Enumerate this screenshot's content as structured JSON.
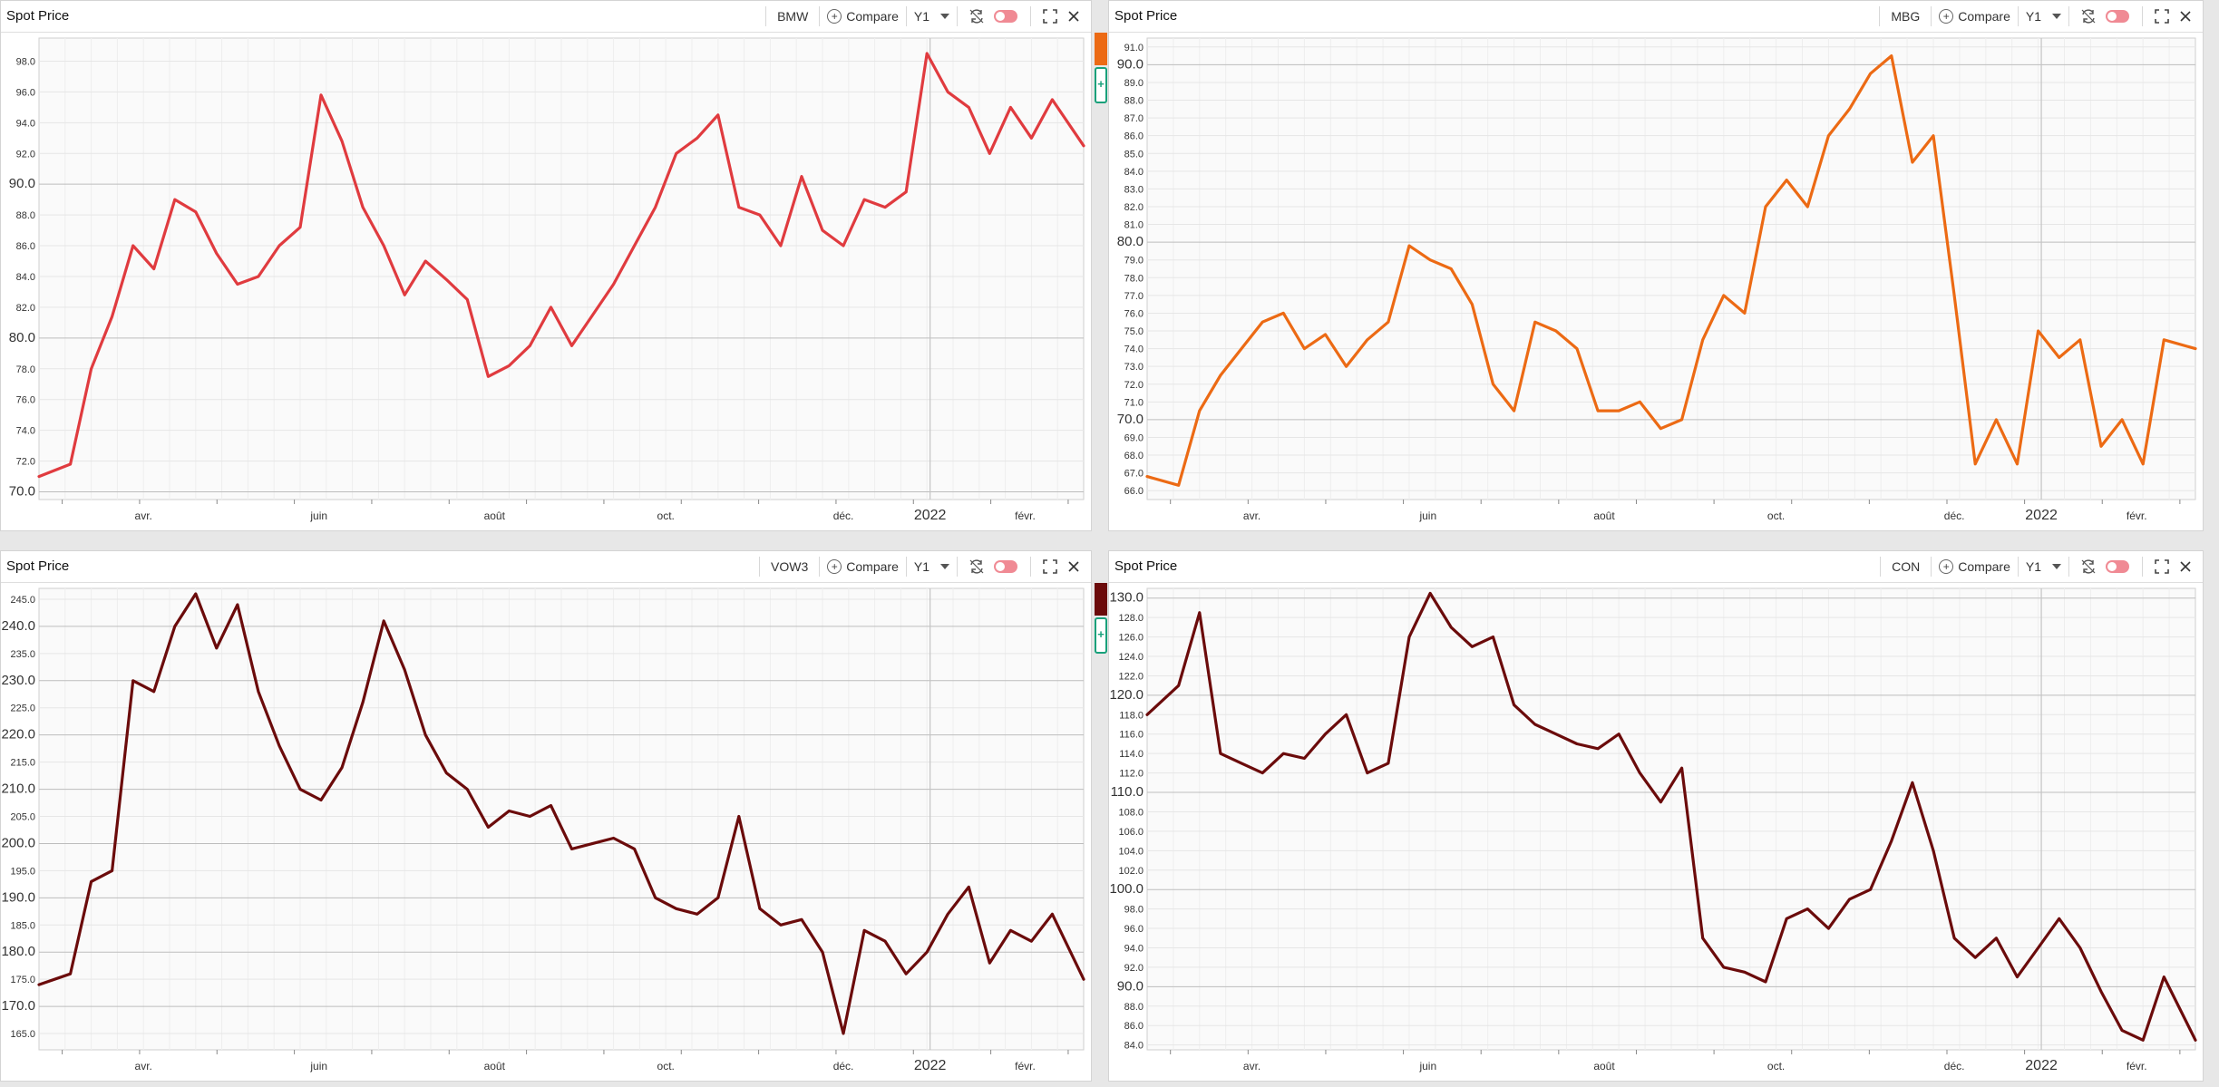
{
  "colors": {
    "bmw": "#e03b3f",
    "mbg": "#ec6a14",
    "vow3": "#6b0b0b",
    "con": "#6b0b0b"
  },
  "panels": [
    {
      "id": "bmw",
      "title": "Spot Price",
      "ticker": "BMW",
      "compare_label": "Compare",
      "period_label": "Y1",
      "icons": [
        "sync-icon",
        "toggle-switch",
        "expand-icon",
        "close-icon"
      ]
    },
    {
      "id": "mbg",
      "title": "Spot Price",
      "ticker": "MBG",
      "compare_label": "Compare",
      "period_label": "Y1",
      "icons": [
        "sync-icon",
        "toggle-switch",
        "expand-icon",
        "close-icon"
      ]
    },
    {
      "id": "vow3",
      "title": "Spot Price",
      "ticker": "VOW3",
      "compare_label": "Compare",
      "period_label": "Y1",
      "icons": [
        "sync-icon",
        "toggle-switch",
        "expand-icon",
        "close-icon"
      ]
    },
    {
      "id": "con",
      "title": "Spot Price",
      "ticker": "CON",
      "compare_label": "Compare",
      "period_label": "Y1",
      "icons": [
        "sync-icon",
        "toggle-switch",
        "expand-icon",
        "close-icon"
      ]
    }
  ],
  "chart_data": [
    {
      "type": "line",
      "title": "Spot Price",
      "series_name": "BMW",
      "color": "#e03b3f",
      "ylim": [
        69.5,
        99.5
      ],
      "ytick_step": 2,
      "major_ytick_step": 10,
      "x_ticks": [
        "avr.",
        "juin",
        "août",
        "oct.",
        "déc.",
        "2022",
        "févr."
      ],
      "x_tick_positions": [
        0.1,
        0.268,
        0.436,
        0.6,
        0.77,
        0.853,
        0.944
      ],
      "grid": true,
      "x": [
        0,
        0.03,
        0.05,
        0.07,
        0.09,
        0.11,
        0.13,
        0.15,
        0.17,
        0.19,
        0.21,
        0.23,
        0.25,
        0.27,
        0.29,
        0.31,
        0.33,
        0.35,
        0.37,
        0.39,
        0.41,
        0.43,
        0.45,
        0.47,
        0.49,
        0.51,
        0.53,
        0.55,
        0.57,
        0.59,
        0.61,
        0.63,
        0.65,
        0.67,
        0.69,
        0.71,
        0.73,
        0.75,
        0.77,
        0.79,
        0.81,
        0.83,
        0.85,
        0.87,
        0.89,
        0.91,
        0.93,
        0.95,
        0.97,
        1.0
      ],
      "values": [
        71.0,
        71.8,
        78.0,
        81.4,
        86.0,
        84.5,
        89.0,
        88.2,
        85.5,
        83.5,
        84.0,
        86.0,
        87.2,
        95.8,
        92.8,
        88.5,
        86.0,
        82.8,
        85.0,
        83.8,
        82.5,
        77.5,
        78.2,
        79.5,
        82.0,
        79.5,
        81.5,
        83.5,
        86.0,
        88.5,
        92.0,
        93.0,
        94.5,
        88.5,
        88.0,
        86.0,
        90.5,
        87.0,
        86.0,
        89.0,
        88.5,
        89.5,
        98.5,
        96.0,
        95.0,
        92.0,
        95.0,
        93.0,
        95.5,
        92.5
      ]
    },
    {
      "type": "line",
      "title": "Spot Price",
      "series_name": "MBG",
      "color": "#ec6a14",
      "ylim": [
        65.5,
        91.5
      ],
      "ytick_step": 1,
      "major_ytick_step": 10,
      "x_ticks": [
        "avr.",
        "juin",
        "août",
        "oct.",
        "déc.",
        "2022",
        "févr."
      ],
      "x_tick_positions": [
        0.1,
        0.268,
        0.436,
        0.6,
        0.77,
        0.853,
        0.944
      ],
      "grid": true,
      "x": [
        0,
        0.03,
        0.05,
        0.07,
        0.09,
        0.11,
        0.13,
        0.15,
        0.17,
        0.19,
        0.21,
        0.23,
        0.25,
        0.27,
        0.29,
        0.31,
        0.33,
        0.35,
        0.37,
        0.39,
        0.41,
        0.43,
        0.45,
        0.47,
        0.49,
        0.51,
        0.53,
        0.55,
        0.57,
        0.59,
        0.61,
        0.63,
        0.65,
        0.67,
        0.69,
        0.71,
        0.73,
        0.75,
        0.77,
        0.79,
        0.81,
        0.83,
        0.85,
        0.87,
        0.89,
        0.91,
        0.93,
        0.95,
        0.97,
        1.0
      ],
      "values": [
        66.8,
        66.3,
        70.5,
        72.5,
        74.0,
        75.5,
        76.0,
        74.0,
        74.8,
        73.0,
        74.5,
        75.5,
        79.8,
        79.0,
        78.5,
        76.5,
        72.0,
        70.5,
        75.5,
        75.0,
        74.0,
        70.5,
        70.5,
        71.0,
        69.5,
        70.0,
        74.5,
        77.0,
        76.0,
        82.0,
        83.5,
        82.0,
        86.0,
        87.5,
        89.5,
        90.5,
        84.5,
        86.0,
        77.0,
        67.5,
        70.0,
        67.5,
        75.0,
        73.5,
        74.5,
        68.5,
        70.0,
        67.5,
        74.5,
        74.0
      ]
    },
    {
      "type": "line",
      "title": "Spot Price",
      "series_name": "VOW3",
      "color": "#6b0b0b",
      "ylim": [
        162.0,
        247.0
      ],
      "ytick_step": 5,
      "major_ytick_step": 10,
      "x_ticks": [
        "avr.",
        "juin",
        "août",
        "oct.",
        "déc.",
        "2022",
        "févr."
      ],
      "x_tick_positions": [
        0.1,
        0.268,
        0.436,
        0.6,
        0.77,
        0.853,
        0.944
      ],
      "grid": true,
      "x": [
        0,
        0.03,
        0.05,
        0.07,
        0.09,
        0.11,
        0.13,
        0.15,
        0.17,
        0.19,
        0.21,
        0.23,
        0.25,
        0.27,
        0.29,
        0.31,
        0.33,
        0.35,
        0.37,
        0.39,
        0.41,
        0.43,
        0.45,
        0.47,
        0.49,
        0.51,
        0.53,
        0.55,
        0.57,
        0.59,
        0.61,
        0.63,
        0.65,
        0.67,
        0.69,
        0.71,
        0.73,
        0.75,
        0.77,
        0.79,
        0.81,
        0.83,
        0.85,
        0.87,
        0.89,
        0.91,
        0.93,
        0.95,
        0.97,
        1.0
      ],
      "values": [
        174.0,
        176.0,
        193.0,
        195.0,
        230.0,
        228.0,
        240.0,
        246.0,
        236.0,
        244.0,
        228.0,
        218.0,
        210.0,
        208.0,
        214.0,
        226.0,
        241.0,
        232.0,
        220.0,
        213.0,
        210.0,
        203.0,
        206.0,
        205.0,
        207.0,
        199.0,
        200.0,
        201.0,
        199.0,
        190.0,
        188.0,
        187.0,
        190.0,
        205.0,
        188.0,
        185.0,
        186.0,
        180.0,
        165.0,
        184.0,
        182.0,
        176.0,
        180.0,
        187.0,
        192.0,
        178.0,
        184.0,
        182.0,
        187.0,
        175.0
      ]
    },
    {
      "type": "line",
      "title": "Spot Price",
      "series_name": "CON",
      "color": "#6b0b0b",
      "ylim": [
        83.5,
        131.0
      ],
      "ytick_step": 2,
      "major_ytick_step": 10,
      "x_ticks": [
        "avr.",
        "juin",
        "août",
        "oct.",
        "déc.",
        "2022",
        "févr."
      ],
      "x_tick_positions": [
        0.1,
        0.268,
        0.436,
        0.6,
        0.77,
        0.853,
        0.944
      ],
      "grid": true,
      "x": [
        0,
        0.03,
        0.05,
        0.07,
        0.09,
        0.11,
        0.13,
        0.15,
        0.17,
        0.19,
        0.21,
        0.23,
        0.25,
        0.27,
        0.29,
        0.31,
        0.33,
        0.35,
        0.37,
        0.39,
        0.41,
        0.43,
        0.45,
        0.47,
        0.49,
        0.51,
        0.53,
        0.55,
        0.57,
        0.59,
        0.61,
        0.63,
        0.65,
        0.67,
        0.69,
        0.71,
        0.73,
        0.75,
        0.77,
        0.79,
        0.81,
        0.83,
        0.85,
        0.87,
        0.89,
        0.91,
        0.93,
        0.95,
        0.97,
        1.0
      ],
      "values": [
        118.0,
        121.0,
        128.5,
        114.0,
        113.0,
        112.0,
        114.0,
        113.5,
        116.0,
        118.0,
        112.0,
        113.0,
        126.0,
        130.5,
        127.0,
        125.0,
        126.0,
        119.0,
        117.0,
        116.0,
        115.0,
        114.5,
        116.0,
        112.0,
        109.0,
        112.5,
        95.0,
        92.0,
        91.5,
        90.5,
        97.0,
        98.0,
        96.0,
        99.0,
        100.0,
        105.0,
        111.0,
        104.0,
        95.0,
        93.0,
        95.0,
        91.0,
        94.0,
        97.0,
        94.0,
        89.5,
        85.5,
        84.5,
        91.0,
        84.5
      ]
    }
  ]
}
